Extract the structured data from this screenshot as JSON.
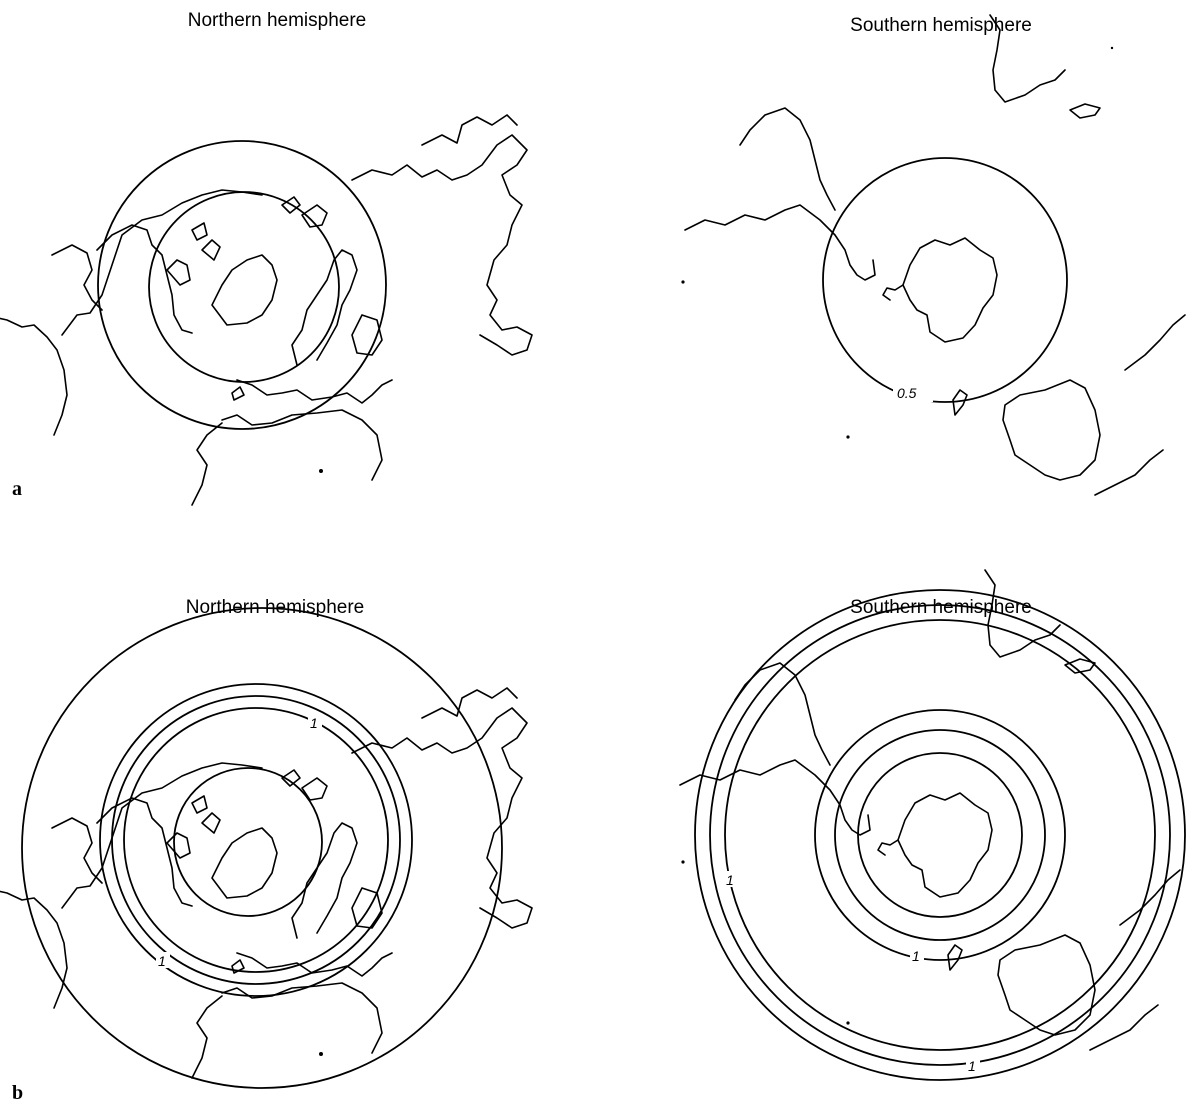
{
  "panels": [
    {
      "id": "a",
      "letter": "a",
      "left_title": "Northern hemisphere",
      "right_title": "Southern hemisphere",
      "contour_labels": {
        "south": [
          "0.5"
        ]
      }
    },
    {
      "id": "b",
      "letter": "b",
      "left_title": "Northern hemisphere",
      "right_title": "Southern hemisphere",
      "contour_labels": {
        "north": [
          "1",
          "1"
        ],
        "south": [
          "1",
          "1",
          "1"
        ]
      }
    }
  ]
}
